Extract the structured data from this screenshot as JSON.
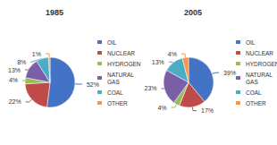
{
  "chart_data": [
    {
      "type": "pie",
      "title": "1985",
      "categories": [
        "OIL",
        "NUCLEAR",
        "HYDROGEN",
        "NATURAL\nGAS",
        "COAL",
        "OTHER"
      ],
      "values": [
        52,
        22,
        4,
        13,
        8,
        1
      ],
      "value_labels": [
        "52%",
        "22%",
        "4%",
        "13%",
        "8%",
        "1%"
      ],
      "colors": [
        "#4472C4",
        "#BE4B48",
        "#9BBB59",
        "#7B5EA7",
        "#4BACC6",
        "#F79646"
      ],
      "data_labels": true,
      "legend": "right"
    },
    {
      "type": "pie",
      "title": "2005",
      "categories": [
        "OIL",
        "NUCLEAR",
        "HYDROGEN",
        "NATURAL\nGAS",
        "COAL",
        "OTHER"
      ],
      "values": [
        39,
        17,
        4,
        23,
        13,
        4
      ],
      "value_labels": [
        "39%",
        "17%",
        "4%",
        "23%",
        "13%",
        "4%"
      ],
      "colors": [
        "#4472C4",
        "#BE4B48",
        "#9BBB59",
        "#7B5EA7",
        "#4BACC6",
        "#F79646"
      ],
      "data_labels": true,
      "legend": "right"
    }
  ]
}
